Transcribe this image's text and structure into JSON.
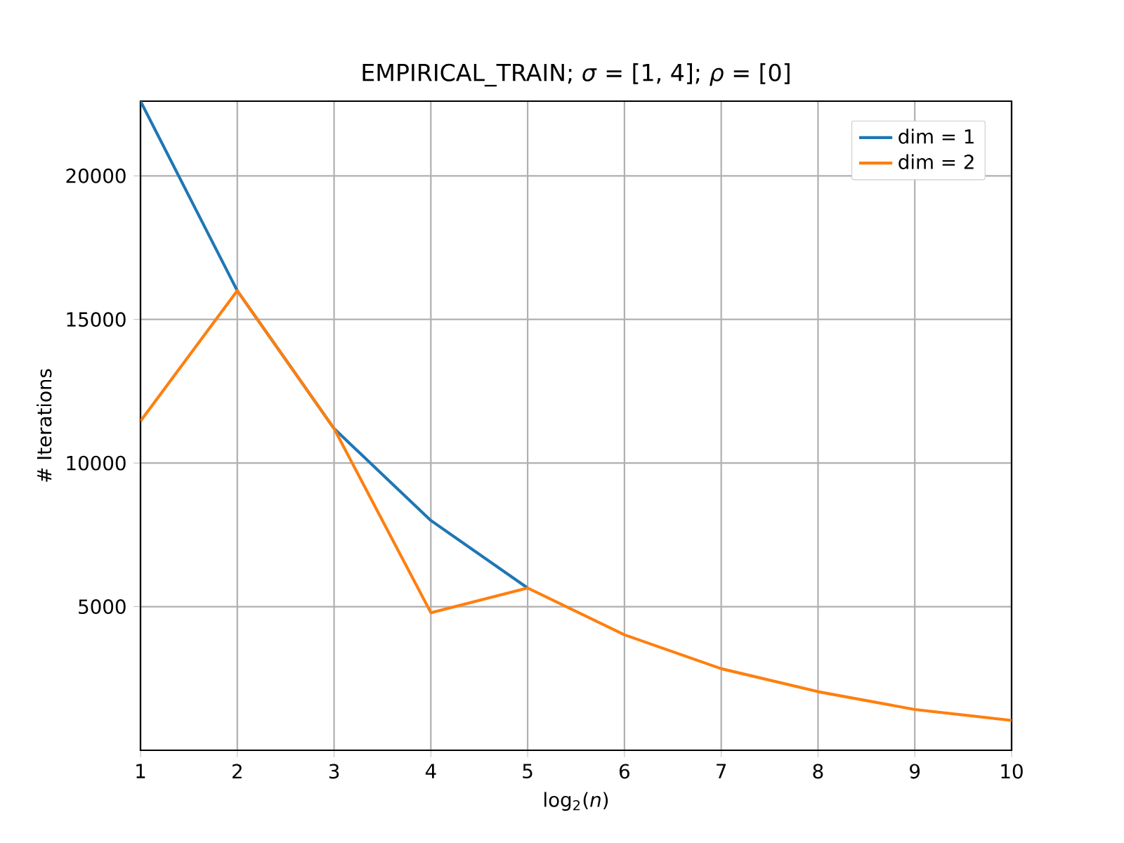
{
  "chart_data": {
    "type": "line",
    "title": "EMPIRICAL_TRAIN;  *σ* = [1, 4];  *ρ* = [0]",
    "xlabel": "log$_{2}$(*n*)",
    "ylabel": "# Iterations",
    "x": [
      1,
      2,
      3,
      4,
      5,
      6,
      7,
      8,
      9,
      10
    ],
    "series": [
      {
        "name": "dim = 1",
        "color": "#1f77b4",
        "values": [
          22600,
          16000,
          11200,
          8000,
          5650,
          null,
          null,
          null,
          null,
          null
        ]
      },
      {
        "name": "dim = 2",
        "color": "#ff7f0e",
        "values": [
          11460,
          16000,
          11200,
          4790,
          5650,
          4020,
          2840,
          2040,
          1420,
          1040
        ]
      }
    ],
    "xlim": [
      1,
      10
    ],
    "ylim": [
      0,
      22600
    ],
    "xticks": [
      1,
      2,
      3,
      4,
      5,
      6,
      7,
      8,
      9,
      10
    ],
    "yticks": [
      5000,
      10000,
      15000,
      20000
    ],
    "grid": true,
    "legend": "top right",
    "marker": "none",
    "line_style": "solid"
  }
}
